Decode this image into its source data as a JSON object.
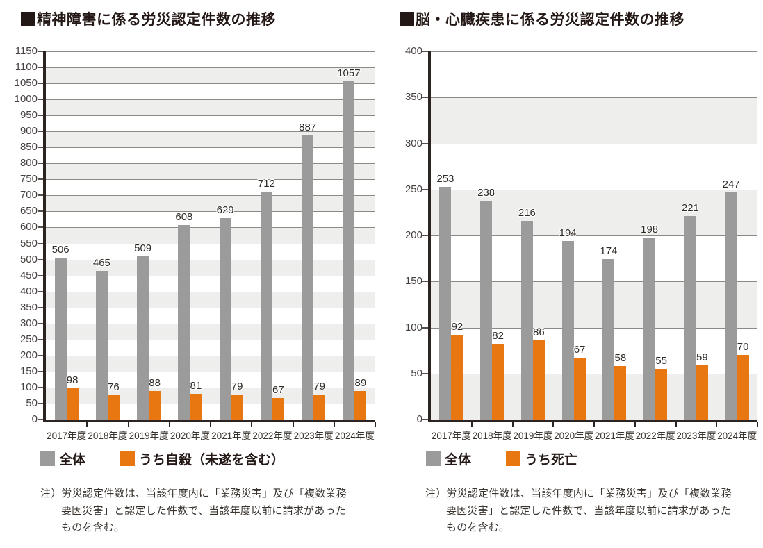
{
  "style": {
    "band_color": "#eeeeec",
    "grid_color": "#8b8b86",
    "axis_color": "#2b2420",
    "bar_gray": "#9b9b9b",
    "bar_orange": "#e87611",
    "title_color": "#231815"
  },
  "chart_data": [
    {
      "type": "bar",
      "title": "精神障害に係る労災認定件数の推移",
      "categories": [
        "2017年度",
        "2018年度",
        "2019年度",
        "2020年度",
        "2021年度",
        "2022年度",
        "2023年度",
        "2024年度"
      ],
      "series": [
        {
          "name": "全体",
          "color": "#9b9b9b",
          "values": [
            506,
            465,
            509,
            608,
            629,
            712,
            887,
            1057
          ]
        },
        {
          "name": "うち自殺（未遂を含む）",
          "color": "#e87611",
          "values": [
            98,
            76,
            88,
            81,
            79,
            67,
            79,
            89
          ]
        }
      ],
      "ylim": [
        0,
        1150
      ],
      "ystep": 50,
      "grid": true,
      "legend_position": "bottom",
      "note_lines": [
        "注）労災認定件数は、当該年度内に「業務災害」及び「複数業務",
        "要因災害」と認定した件数で、当該年度以前に請求があった",
        "ものを含む。"
      ]
    },
    {
      "type": "bar",
      "title": "脳・心臓疾患に係る労災認定件数の推移",
      "categories": [
        "2017年度",
        "2018年度",
        "2019年度",
        "2020年度",
        "2021年度",
        "2022年度",
        "2023年度",
        "2024年度"
      ],
      "series": [
        {
          "name": "全体",
          "color": "#9b9b9b",
          "values": [
            253,
            238,
            216,
            194,
            174,
            198,
            221,
            247
          ]
        },
        {
          "name": "うち死亡",
          "color": "#e87611",
          "values": [
            92,
            82,
            86,
            67,
            58,
            55,
            59,
            70
          ]
        }
      ],
      "ylim": [
        0,
        400
      ],
      "ystep": 50,
      "grid": true,
      "legend_position": "bottom",
      "note_lines": [
        "注）労災認定件数は、当該年度内に「業務災害」及び「複数業務",
        "要因災害」と認定した件数で、当該年度以前に請求があった",
        "ものを含む。"
      ]
    }
  ]
}
